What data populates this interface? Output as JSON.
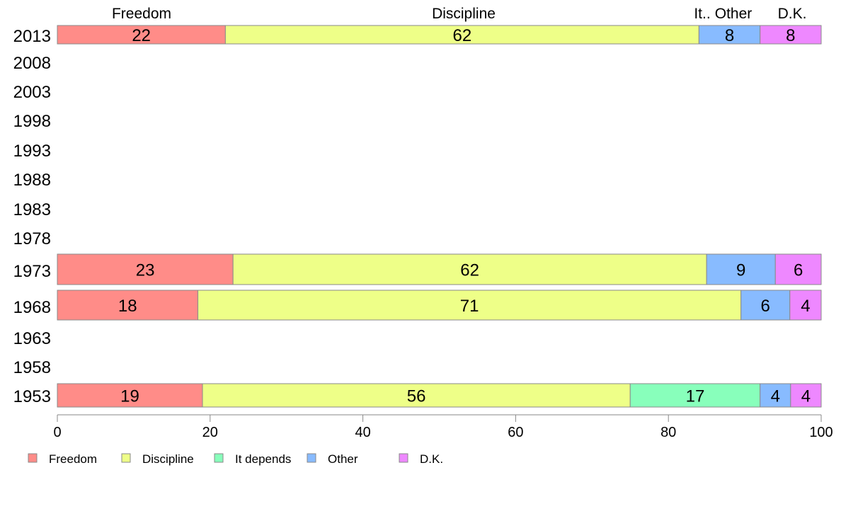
{
  "chart_data": {
    "type": "bar",
    "orientation": "horizontal",
    "stacked": true,
    "xlim": [
      0,
      100
    ],
    "x_ticks": [
      0,
      20,
      40,
      60,
      80,
      100
    ],
    "years": [
      "2013",
      "2008",
      "2003",
      "1998",
      "1993",
      "1988",
      "1983",
      "1978",
      "1973",
      "1968",
      "1963",
      "1958",
      "1953"
    ],
    "series": [
      {
        "name": "Freedom",
        "color": "#ff8c88"
      },
      {
        "name": "Discipline",
        "color": "#eeff88"
      },
      {
        "name": "It depends",
        "color": "#88ffbb"
      },
      {
        "name": "Other",
        "color": "#88bbff"
      },
      {
        "name": "D.K.",
        "color": "#ee88ff"
      }
    ],
    "rows": [
      {
        "year": "2013",
        "values": [
          22,
          62,
          0,
          8,
          8
        ],
        "value_labels": [
          "22",
          "62",
          "",
          "8",
          "8"
        ]
      },
      {
        "year": "1973",
        "values": [
          23,
          62,
          0,
          9,
          6
        ],
        "value_labels": [
          "23",
          "62",
          "",
          "9",
          "6"
        ]
      },
      {
        "year": "1968",
        "values": [
          18.4,
          71.1,
          0,
          6.4,
          4.1
        ],
        "value_labels": [
          "18",
          "71",
          "",
          "6",
          "4"
        ]
      },
      {
        "year": "1953",
        "values": [
          19,
          56,
          17,
          4,
          4
        ],
        "value_labels": [
          "19",
          "56",
          "17",
          "4",
          "4"
        ]
      }
    ],
    "column_headers": [
      "Freedom",
      "Discipline",
      "It..",
      "Other",
      "D.K."
    ],
    "legend": [
      "Freedom",
      "Discipline",
      "It depends",
      "Other",
      "D.K."
    ],
    "legend_position": "bottom"
  }
}
